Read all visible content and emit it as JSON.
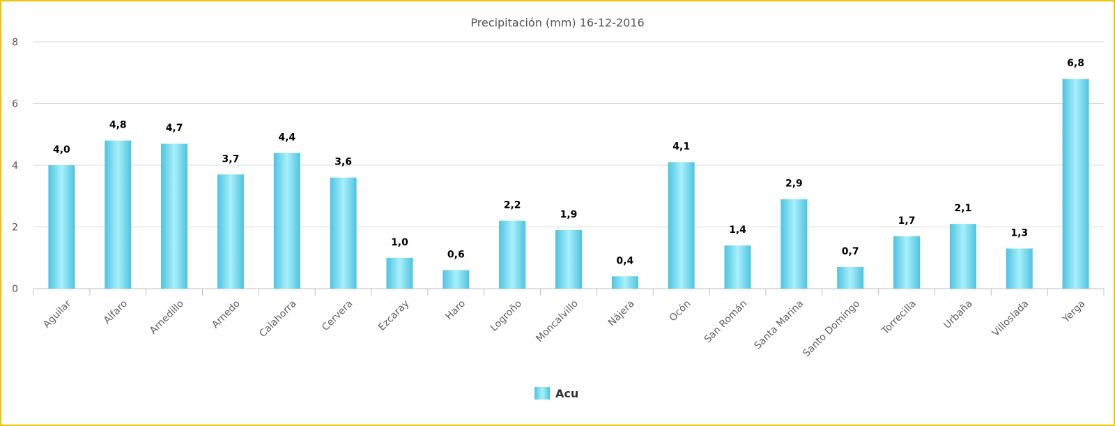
{
  "chart_data": {
    "type": "bar",
    "title": "Precipitación (mm) 16-12-2016",
    "xlabel": "",
    "ylabel": "",
    "ylim": [
      0,
      8
    ],
    "yticks": [
      "0",
      "2",
      "4",
      "6",
      "8"
    ],
    "categories": [
      "Aguilar",
      "Alfaro",
      "Arnedillo",
      "Arnedo",
      "Calahorra",
      "Cervera",
      "Ezcaray",
      "Haro",
      "Logroño",
      "Moncalvillo",
      "Nájera",
      "Ocón",
      "San Román",
      "Santa Marina",
      "Santo Domingo",
      "Torrecilla",
      "Urbaña",
      "Villoslada",
      "Yerga"
    ],
    "series": [
      {
        "name": "Acu",
        "values": [
          4.0,
          4.8,
          4.7,
          3.7,
          4.4,
          3.6,
          1.0,
          0.6,
          2.2,
          1.9,
          0.4,
          4.1,
          1.4,
          2.9,
          0.7,
          1.7,
          2.1,
          1.3,
          6.8
        ],
        "labels": [
          "4,0",
          "4,8",
          "4,7",
          "3,7",
          "4,4",
          "3,6",
          "1,0",
          "0,6",
          "2,2",
          "1,9",
          "0,4",
          "4,1",
          "1,4",
          "2,9",
          "0,7",
          "1,7",
          "2,1",
          "1,3",
          "6,8"
        ]
      }
    ],
    "grid": true,
    "legend": "bottom-center",
    "colors": {
      "bar_edge": "#4ec3e0",
      "bar_center": "#a8f0fb",
      "grid": "#d8d8d8",
      "frame": "#f2c200"
    }
  }
}
